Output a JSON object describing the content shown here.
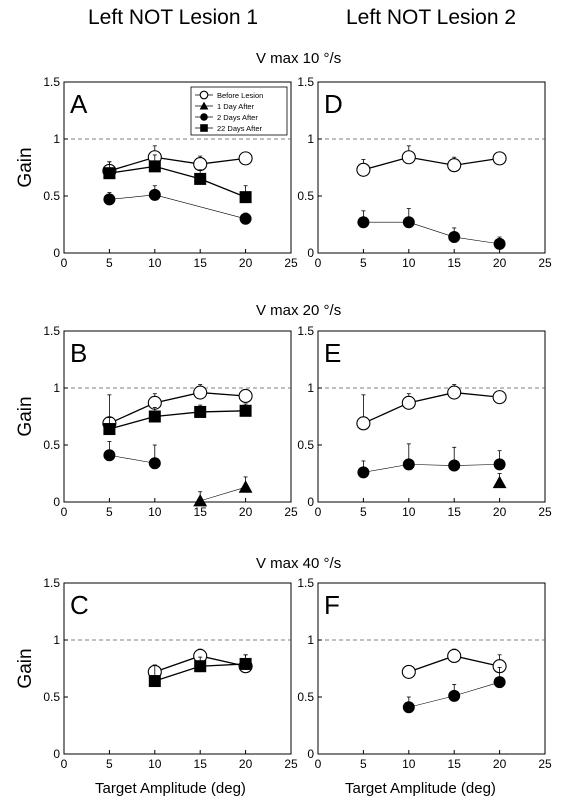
{
  "column_titles": [
    "Left NOT Lesion 1",
    "Left NOT Lesion 2"
  ],
  "row_titles": [
    "V max 10 °/s",
    "V max 20 °/s",
    "V max 40 °/s"
  ],
  "colors": {
    "marker": "#000000",
    "open_fill": "#ffffff",
    "reference_line": "#555555"
  },
  "chart_data": [
    {
      "type": "line",
      "panel": "A",
      "ylabel": "Gain",
      "xlabel": "",
      "xlim": [
        0,
        25
      ],
      "ylim": [
        0,
        1.5
      ],
      "xticks": [
        "0",
        "5",
        "10",
        "15",
        "20",
        "25"
      ],
      "yticks": [
        "0",
        "0.5",
        "1",
        "1.5"
      ],
      "reference_line_y": 1,
      "legend": {
        "position": "top-right",
        "entries": [
          "Before Lesion",
          "1 Day After",
          "2 Days After",
          "22 Days After"
        ]
      },
      "series": [
        {
          "name": "Before Lesion",
          "marker": "open-circle",
          "x": [
            5,
            10,
            15,
            20
          ],
          "y": [
            0.72,
            0.84,
            0.78,
            0.83
          ],
          "err": [
            0.08,
            0.1,
            0.07,
            0.05
          ]
        },
        {
          "name": "2 Days After",
          "marker": "filled-circle",
          "x": [
            5,
            10,
            20
          ],
          "y": [
            0.47,
            0.51,
            0.3
          ],
          "err": [
            0.06,
            0.08,
            0.05
          ]
        },
        {
          "name": "22 Days After",
          "marker": "filled-square",
          "x": [
            5,
            10,
            15,
            20
          ],
          "y": [
            0.7,
            0.76,
            0.65,
            0.49
          ],
          "err": [
            0.1,
            0.1,
            0.08,
            0.1
          ]
        }
      ]
    },
    {
      "type": "line",
      "panel": "D",
      "ylabel": "",
      "xlabel": "",
      "xlim": [
        0,
        25
      ],
      "ylim": [
        0,
        1.5
      ],
      "xticks": [
        "0",
        "5",
        "10",
        "15",
        "20",
        "25"
      ],
      "yticks": [
        "0",
        "0.5",
        "1",
        "1.5"
      ],
      "reference_line_y": 1,
      "series": [
        {
          "marker": "open-circle",
          "x": [
            5,
            10,
            15,
            20
          ],
          "y": [
            0.73,
            0.84,
            0.77,
            0.83
          ],
          "err": [
            0.09,
            0.1,
            0.07,
            0.05
          ]
        },
        {
          "marker": "filled-circle",
          "x": [
            5,
            10,
            15,
            20
          ],
          "y": [
            0.27,
            0.27,
            0.14,
            0.08
          ],
          "err": [
            0.1,
            0.12,
            0.08,
            0.06
          ]
        }
      ]
    },
    {
      "type": "line",
      "panel": "B",
      "ylabel": "Gain",
      "xlabel": "",
      "xlim": [
        0,
        25
      ],
      "ylim": [
        0,
        1.5
      ],
      "xticks": [
        "0",
        "5",
        "10",
        "15",
        "20",
        "25"
      ],
      "yticks": [
        "0",
        "0.5",
        "1",
        "1.5"
      ],
      "reference_line_y": 1,
      "series": [
        {
          "marker": "open-circle",
          "x": [
            5,
            10,
            15,
            20
          ],
          "y": [
            0.69,
            0.87,
            0.96,
            0.93
          ],
          "err": [
            0.25,
            0.08,
            0.07,
            0.05
          ]
        },
        {
          "marker": "filled-triangle",
          "x": [
            15,
            20
          ],
          "y": [
            0.01,
            0.13
          ],
          "err": [
            0.08,
            0.09
          ]
        },
        {
          "marker": "filled-circle",
          "x": [
            5,
            10
          ],
          "y": [
            0.41,
            0.34
          ],
          "err": [
            0.12,
            0.16
          ]
        },
        {
          "marker": "filled-square",
          "x": [
            5,
            10,
            15,
            20
          ],
          "y": [
            0.64,
            0.75,
            0.79,
            0.8
          ],
          "err": [
            0.1,
            0.08,
            0.06,
            0.06
          ]
        }
      ]
    },
    {
      "type": "line",
      "panel": "E",
      "ylabel": "",
      "xlabel": "",
      "xlim": [
        0,
        25
      ],
      "ylim": [
        0,
        1.5
      ],
      "xticks": [
        "0",
        "5",
        "10",
        "15",
        "20",
        "25"
      ],
      "yticks": [
        "0",
        "0.5",
        "1",
        "1.5"
      ],
      "reference_line_y": 1,
      "series": [
        {
          "marker": "open-circle",
          "x": [
            5,
            10,
            15,
            20
          ],
          "y": [
            0.69,
            0.87,
            0.96,
            0.92
          ],
          "err": [
            0.25,
            0.08,
            0.07,
            0.05
          ]
        },
        {
          "marker": "filled-circle",
          "x": [
            5,
            10,
            15,
            20
          ],
          "y": [
            0.26,
            0.33,
            0.32,
            0.33
          ],
          "err": [
            0.1,
            0.18,
            0.16,
            0.12
          ]
        },
        {
          "marker": "filled-triangle",
          "x": [
            20
          ],
          "y": [
            0.17
          ],
          "err": [
            0.08
          ]
        }
      ]
    },
    {
      "type": "line",
      "panel": "C",
      "ylabel": "Gain",
      "xlabel": "Target Amplitude (deg)",
      "xlim": [
        0,
        25
      ],
      "ylim": [
        0,
        1.5
      ],
      "xticks": [
        "0",
        "5",
        "10",
        "15",
        "20",
        "25"
      ],
      "yticks": [
        "0",
        "0.5",
        "1",
        "1.5"
      ],
      "reference_line_y": 1,
      "series": [
        {
          "marker": "open-circle",
          "x": [
            10,
            15,
            20
          ],
          "y": [
            0.72,
            0.86,
            0.77
          ],
          "err": [
            0.06,
            0.06,
            0.1
          ]
        },
        {
          "marker": "filled-square",
          "x": [
            10,
            15,
            20
          ],
          "y": [
            0.64,
            0.77,
            0.79
          ],
          "err": [
            0.14,
            0.08,
            0.08
          ]
        }
      ]
    },
    {
      "type": "line",
      "panel": "F",
      "ylabel": "",
      "xlabel": "Target Amplitude (deg)",
      "xlim": [
        0,
        25
      ],
      "ylim": [
        0,
        1.5
      ],
      "xticks": [
        "0",
        "5",
        "10",
        "15",
        "20",
        "25"
      ],
      "yticks": [
        "0",
        "0.5",
        "1",
        "1.5"
      ],
      "reference_line_y": 1,
      "series": [
        {
          "marker": "open-circle",
          "x": [
            10,
            15,
            20
          ],
          "y": [
            0.72,
            0.86,
            0.77
          ],
          "err": [
            0.05,
            0.06,
            0.1
          ]
        },
        {
          "marker": "filled-circle",
          "x": [
            10,
            15,
            20
          ],
          "y": [
            0.41,
            0.51,
            0.63
          ],
          "err": [
            0.09,
            0.1,
            0.13
          ]
        }
      ]
    }
  ]
}
